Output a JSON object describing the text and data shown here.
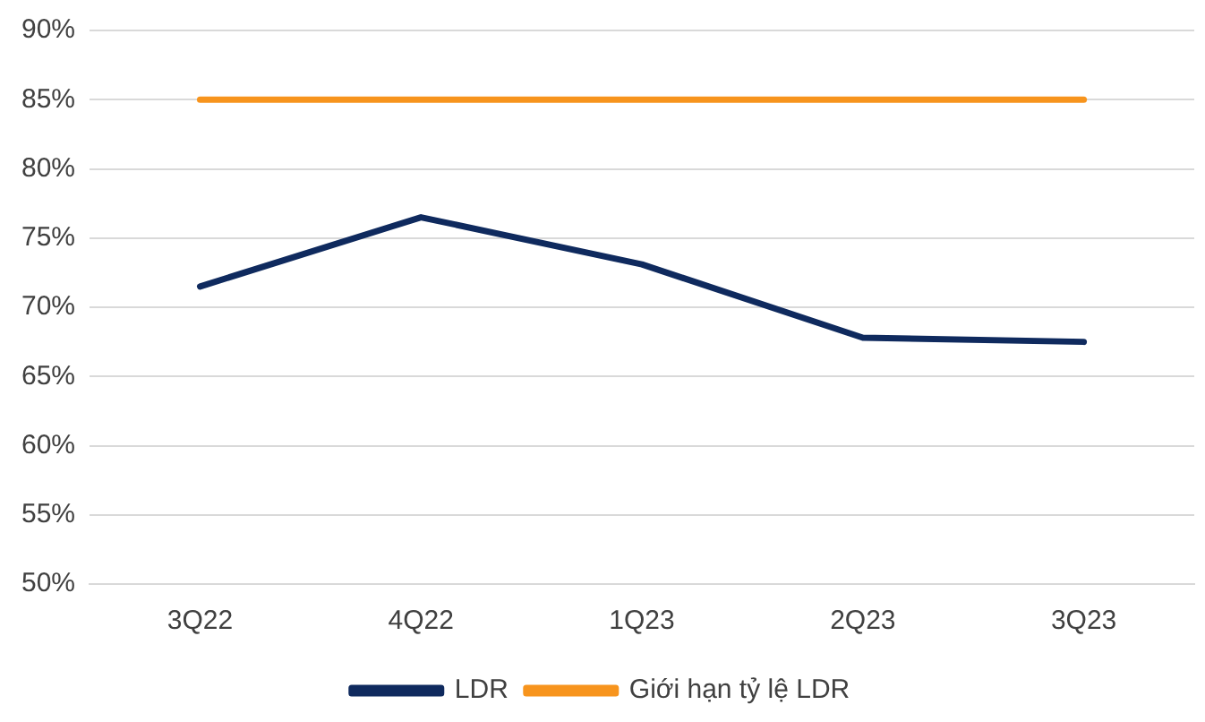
{
  "chart_data": {
    "type": "line",
    "categories": [
      "3Q22",
      "4Q22",
      "1Q23",
      "2Q23",
      "3Q23"
    ],
    "series": [
      {
        "name": "LDR",
        "color": "#0f2a5e",
        "values": [
          71.5,
          76.5,
          73.1,
          67.8,
          67.5
        ]
      },
      {
        "name": "Giới hạn tỷ lệ LDR",
        "color": "#f7941d",
        "values": [
          85,
          85,
          85,
          85,
          85
        ]
      }
    ],
    "ylim": [
      50,
      90
    ],
    "yticks": [
      {
        "value": 50,
        "label": "50%"
      },
      {
        "value": 55,
        "label": "55%"
      },
      {
        "value": 60,
        "label": "60%"
      },
      {
        "value": 65,
        "label": "65%"
      },
      {
        "value": 70,
        "label": "70%"
      },
      {
        "value": 75,
        "label": "75%"
      },
      {
        "value": 80,
        "label": "80%"
      },
      {
        "value": 85,
        "label": "85%"
      },
      {
        "value": 90,
        "label": "90%"
      }
    ],
    "grid": "y",
    "legend": "bottom",
    "marker": "none",
    "line_style": "solid"
  }
}
